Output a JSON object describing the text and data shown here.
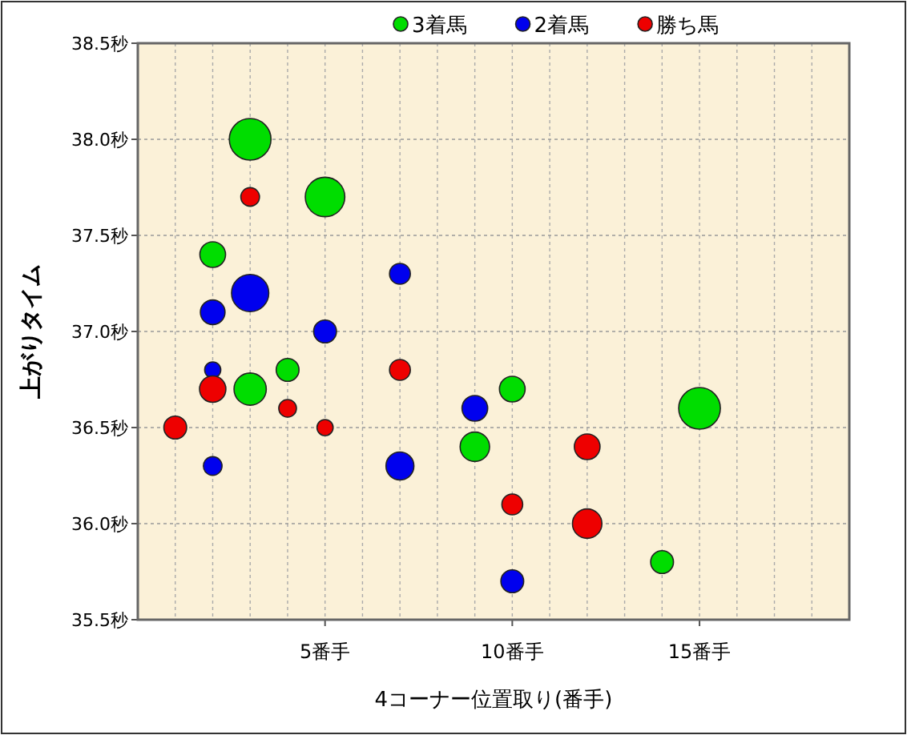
{
  "chart_data": {
    "type": "bubble",
    "xlabel": "4コーナー位置取り(番手)",
    "ylabel": "上がりタイム",
    "xlim": [
      0,
      19
    ],
    "ylim": [
      35.5,
      38.5
    ],
    "xticks": [
      {
        "value": 1,
        "label": null
      },
      {
        "value": 2,
        "label": null
      },
      {
        "value": 3,
        "label": null
      },
      {
        "value": 4,
        "label": null
      },
      {
        "value": 5,
        "label": "5番手"
      },
      {
        "value": 6,
        "label": null
      },
      {
        "value": 7,
        "label": null
      },
      {
        "value": 8,
        "label": null
      },
      {
        "value": 9,
        "label": null
      },
      {
        "value": 10,
        "label": "10番手"
      },
      {
        "value": 11,
        "label": null
      },
      {
        "value": 12,
        "label": null
      },
      {
        "value": 13,
        "label": null
      },
      {
        "value": 14,
        "label": null
      },
      {
        "value": 15,
        "label": "15番手"
      },
      {
        "value": 16,
        "label": null
      },
      {
        "value": 17,
        "label": null
      },
      {
        "value": 18,
        "label": null
      }
    ],
    "yticks": [
      {
        "value": 35.5,
        "label": "35.5秒"
      },
      {
        "value": 36,
        "label": "36.0秒"
      },
      {
        "value": 36.5,
        "label": "36.5秒"
      },
      {
        "value": 37,
        "label": "37.0秒"
      },
      {
        "value": 37.5,
        "label": "37.5秒"
      },
      {
        "value": 38,
        "label": "38.0秒"
      },
      {
        "value": 38.5,
        "label": "38.5秒"
      }
    ],
    "grid": true,
    "legend": "top right",
    "series": [
      {
        "name": "3着馬",
        "color": "#00dd00",
        "x": [
          3,
          5,
          2,
          4,
          3,
          10,
          9,
          15,
          14
        ],
        "values": [
          38.0,
          37.7,
          37.4,
          36.8,
          36.7,
          36.7,
          36.4,
          36.6,
          35.8
        ],
        "sizes": [
          1,
          0.9,
          0.38,
          0.3,
          0.6,
          0.38,
          0.5,
          1,
          0.3
        ]
      },
      {
        "name": "2着馬",
        "color": "#0000ee",
        "x": [
          3,
          2,
          5,
          7,
          2,
          9,
          7,
          2,
          10
        ],
        "values": [
          37.2,
          37.1,
          37.0,
          37.3,
          36.8,
          36.6,
          36.3,
          36.3,
          35.7
        ],
        "sizes": [
          0.8,
          0.35,
          0.3,
          0.25,
          0.15,
          0.38,
          0.45,
          0.2,
          0.3
        ]
      },
      {
        "name": "勝ち馬",
        "color": "#ee0000",
        "x": [
          3,
          7,
          2,
          4,
          1,
          5,
          12,
          10,
          12
        ],
        "values": [
          37.7,
          36.8,
          36.7,
          36.6,
          36.5,
          36.5,
          36.4,
          36.1,
          36.0
        ],
        "sizes": [
          0.2,
          0.25,
          0.4,
          0.18,
          0.3,
          0.15,
          0.38,
          0.25,
          0.5
        ]
      }
    ]
  }
}
